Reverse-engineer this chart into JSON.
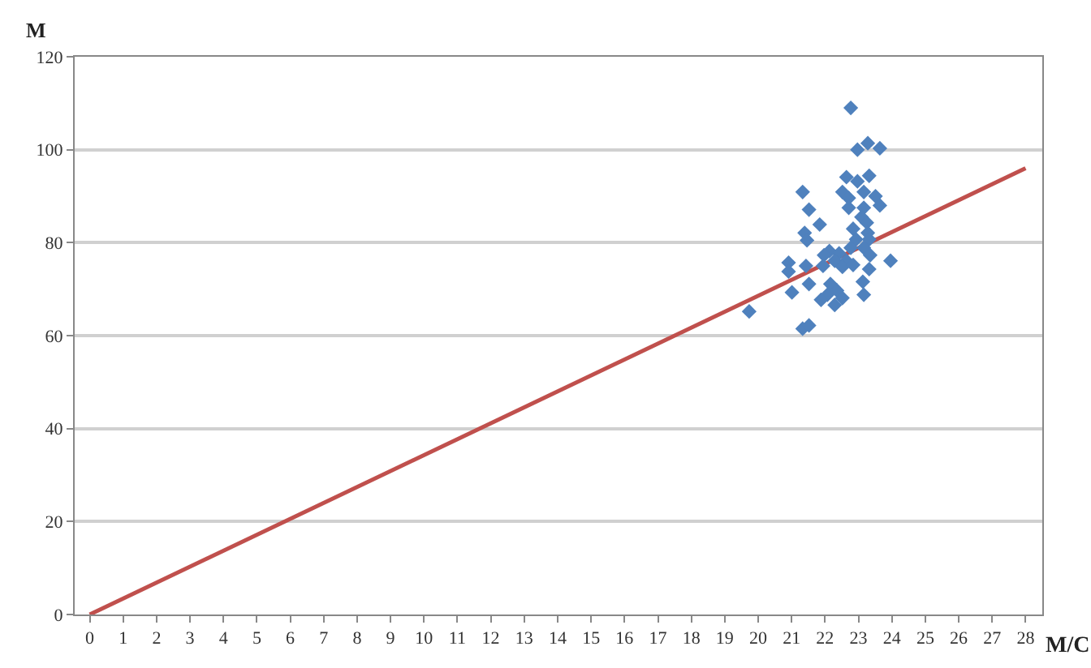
{
  "chart_data": {
    "type": "scatter",
    "xlabel": "M/C",
    "ylabel": "M",
    "xlim": [
      -0.45,
      28.5
    ],
    "xticks": [
      0,
      1,
      2,
      3,
      4,
      5,
      6,
      7,
      8,
      9,
      10,
      11,
      12,
      13,
      14,
      15,
      16,
      17,
      18,
      19,
      20,
      21,
      22,
      23,
      24,
      25,
      26,
      27,
      28
    ],
    "ylim": [
      0,
      120
    ],
    "yticks": [
      0,
      20,
      40,
      60,
      80,
      100,
      120
    ],
    "grid": "y",
    "marker": "diamond",
    "series": [
      {
        "color": "#4f81bd",
        "x": [
          22.77,
          22.97,
          23.28,
          23.64,
          21.33,
          21.52,
          21.84,
          21.39,
          21.46,
          22.64,
          22.97,
          23.32,
          22.52,
          22.71,
          23.16,
          23.51,
          23.64,
          22.71,
          23.16,
          23.09,
          23.25,
          22.84,
          23.28,
          22.93,
          23.32,
          22.77,
          23.16,
          22.13,
          22.42,
          21.97,
          22.29,
          22.64,
          23.35,
          23.96,
          20.91,
          21.43,
          20.91,
          21.94,
          22.52,
          22.84,
          23.32,
          21.52,
          21.01,
          22.16,
          22.36,
          22.07,
          22.52,
          21.88,
          22.29,
          23.13,
          23.16,
          19.73,
          21.33,
          21.52
        ],
        "values": [
          109,
          100,
          101.4,
          100.3,
          90.9,
          87.1,
          83.9,
          82.1,
          80.5,
          94.1,
          93.2,
          94.4,
          90.9,
          89.6,
          90.9,
          90,
          88,
          87.5,
          87.5,
          85.5,
          84.3,
          83,
          82.1,
          80.7,
          80.7,
          78.9,
          78.9,
          78.2,
          77.7,
          77.3,
          76.1,
          76.1,
          77.3,
          76.1,
          75.7,
          75,
          73.8,
          75,
          74.8,
          75.2,
          74.3,
          71.1,
          69.3,
          71.1,
          69.7,
          68.8,
          68.1,
          67.7,
          66.6,
          71.6,
          68.8,
          65.2,
          61.5,
          62.2
        ]
      },
      {
        "type": "line",
        "color": "#c0504d",
        "marker": "none",
        "x": [
          0,
          28
        ],
        "values": [
          0,
          96
        ]
      }
    ]
  }
}
